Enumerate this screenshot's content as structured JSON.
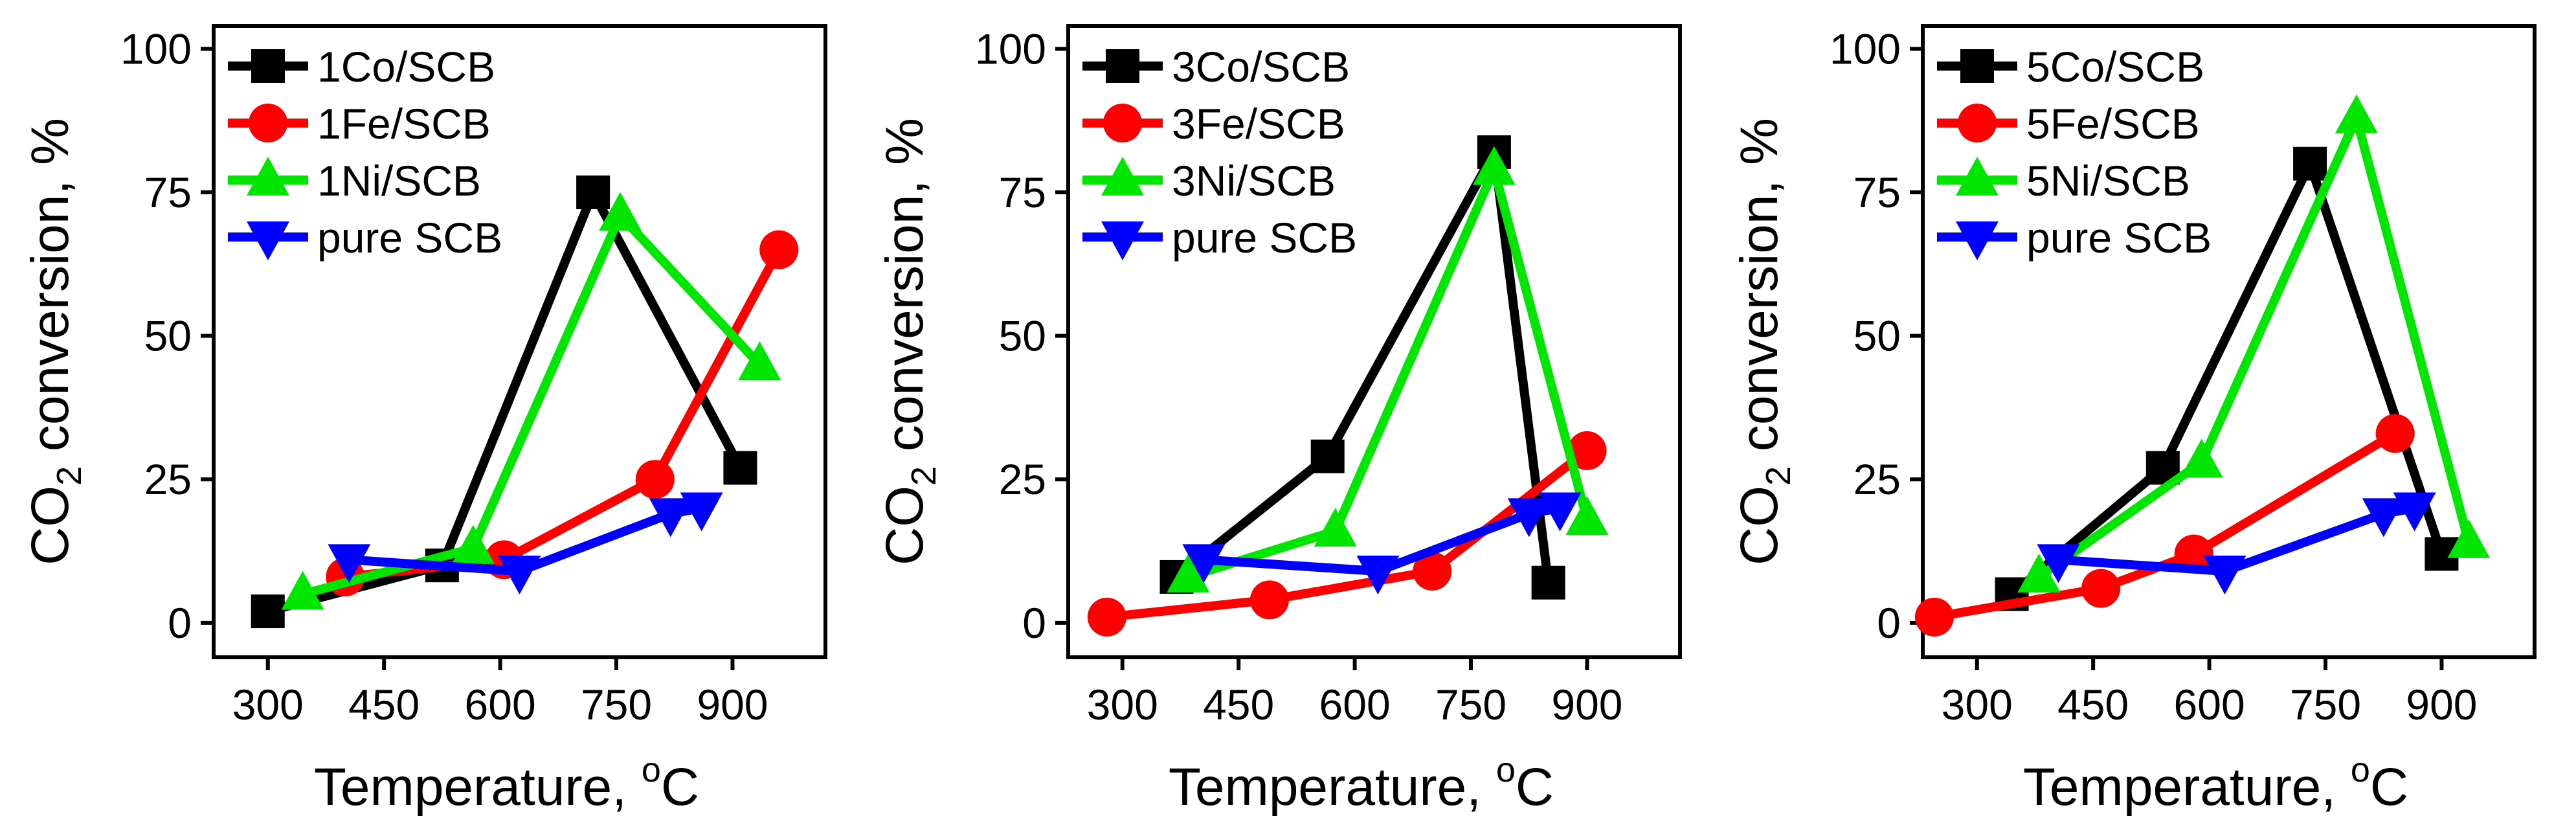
{
  "chart_data": [
    {
      "type": "line",
      "xlabel": "Temperature, ",
      "xlabel_sup": "o",
      "xlabel_tail": "C",
      "ylabel_pre": "CO",
      "ylabel_sub": "2",
      "ylabel_tail": " conversion, %",
      "xlim": [
        230,
        1020
      ],
      "ylim": [
        -6,
        104
      ],
      "xticks": [
        300,
        450,
        600,
        750,
        900
      ],
      "yticks": [
        0,
        25,
        50,
        75,
        100
      ],
      "legend_position": "top-left",
      "series": [
        {
          "name": "1Co/SCB",
          "color": "#000000",
          "marker": "square",
          "points": [
            [
              300,
              2
            ],
            [
              525,
              10
            ],
            [
              720,
              75
            ],
            [
              910,
              27
            ]
          ]
        },
        {
          "name": "1Fe/SCB",
          "color": "#ff0000",
          "marker": "circle",
          "points": [
            [
              400,
              8
            ],
            [
              605,
              11
            ],
            [
              800,
              25
            ],
            [
              960,
              65
            ]
          ]
        },
        {
          "name": "1Ni/SCB",
          "color": "#00e600",
          "marker": "triangle-up",
          "points": [
            [
              345,
              5
            ],
            [
              565,
              13
            ],
            [
              755,
              71
            ],
            [
              935,
              45
            ]
          ]
        },
        {
          "name": "pure SCB",
          "color": "#0000ff",
          "marker": "triangle-down",
          "points": [
            [
              405,
              11
            ],
            [
              625,
              9
            ],
            [
              820,
              19
            ],
            [
              860,
              20
            ]
          ]
        }
      ]
    },
    {
      "type": "line",
      "xlabel": "Temperature, ",
      "xlabel_sup": "o",
      "xlabel_tail": "C",
      "ylabel_pre": "CO",
      "ylabel_sub": "2",
      "ylabel_tail": " conversion, %",
      "xlim": [
        230,
        1020
      ],
      "ylim": [
        -6,
        104
      ],
      "xticks": [
        300,
        450,
        600,
        750,
        900
      ],
      "yticks": [
        0,
        25,
        50,
        75,
        100
      ],
      "legend_position": "top-left",
      "series": [
        {
          "name": "3Co/SCB",
          "color": "#000000",
          "marker": "square",
          "points": [
            [
              370,
              8
            ],
            [
              565,
              29
            ],
            [
              780,
              82
            ],
            [
              850,
              7
            ]
          ]
        },
        {
          "name": "3Fe/SCB",
          "color": "#ff0000",
          "marker": "circle",
          "points": [
            [
              280,
              1
            ],
            [
              490,
              4
            ],
            [
              700,
              9
            ],
            [
              900,
              30
            ]
          ]
        },
        {
          "name": "3Ni/SCB",
          "color": "#00e600",
          "marker": "triangle-up",
          "points": [
            [
              385,
              8
            ],
            [
              575,
              16
            ],
            [
              780,
              79
            ],
            [
              900,
              18
            ]
          ]
        },
        {
          "name": "pure SCB",
          "color": "#0000ff",
          "marker": "triangle-down",
          "points": [
            [
              405,
              11
            ],
            [
              630,
              9
            ],
            [
              825,
              19
            ],
            [
              865,
              20
            ]
          ]
        }
      ]
    },
    {
      "type": "line",
      "xlabel": "Temperature, ",
      "xlabel_sup": "o",
      "xlabel_tail": "C",
      "ylabel_pre": "CO",
      "ylabel_sub": "2",
      "ylabel_tail": " conversion, %",
      "xlim": [
        230,
        1020
      ],
      "ylim": [
        -6,
        104
      ],
      "xticks": [
        300,
        450,
        600,
        750,
        900
      ],
      "yticks": [
        0,
        25,
        50,
        75,
        100
      ],
      "legend_position": "top-left",
      "series": [
        {
          "name": "5Co/SCB",
          "color": "#000000",
          "marker": "square",
          "points": [
            [
              345,
              5
            ],
            [
              540,
              27
            ],
            [
              730,
              80
            ],
            [
              900,
              12
            ]
          ]
        },
        {
          "name": "5Fe/SCB",
          "color": "#ff0000",
          "marker": "circle",
          "points": [
            [
              245,
              1
            ],
            [
              460,
              6
            ],
            [
              580,
              12
            ],
            [
              840,
              33
            ]
          ]
        },
        {
          "name": "5Ni/SCB",
          "color": "#00e600",
          "marker": "triangle-up",
          "points": [
            [
              380,
              8
            ],
            [
              590,
              28
            ],
            [
              790,
              88
            ],
            [
              935,
              14
            ]
          ]
        },
        {
          "name": "pure SCB",
          "color": "#0000ff",
          "marker": "triangle-down",
          "points": [
            [
              405,
              11
            ],
            [
              620,
              9
            ],
            [
              825,
              19
            ],
            [
              865,
              20
            ]
          ]
        }
      ]
    }
  ]
}
